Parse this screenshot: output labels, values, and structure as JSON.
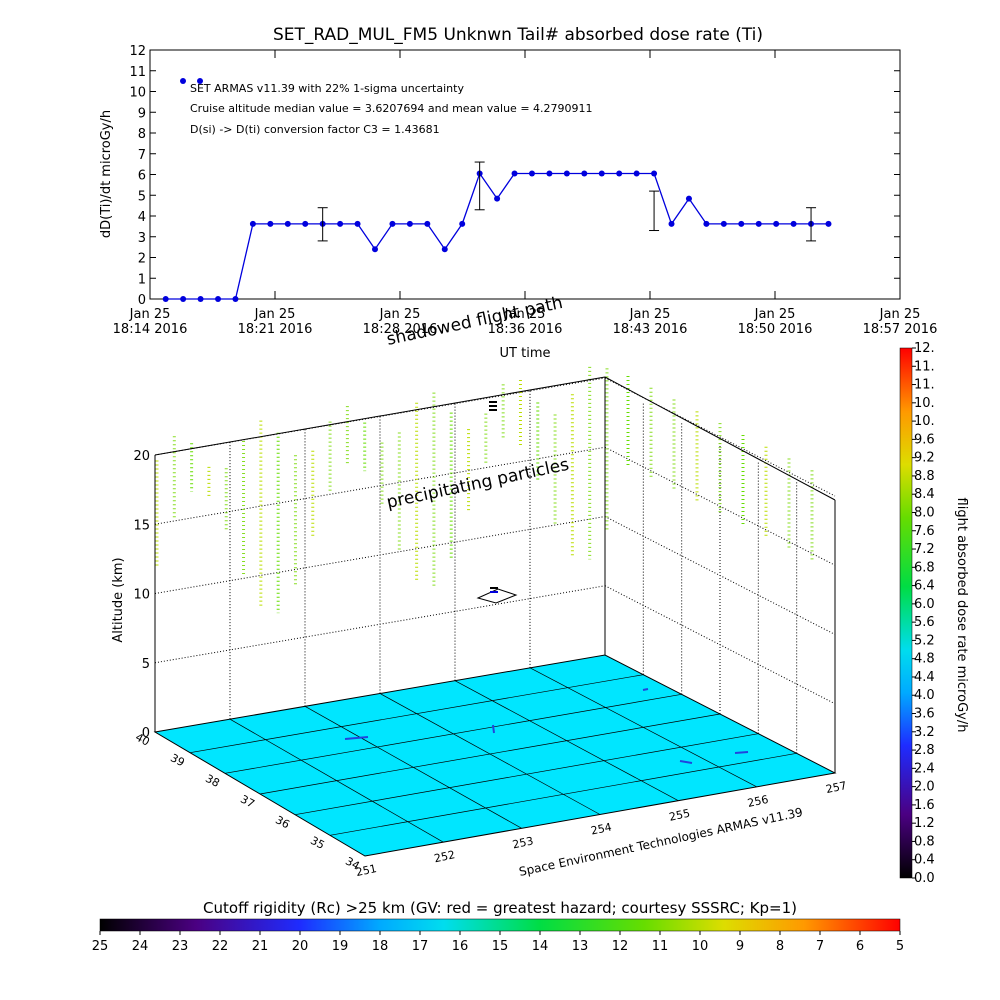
{
  "figure": {
    "title": "SET_RAD_MUL_FM5 Unknwn Tail#  absorbed dose rate (Ti)",
    "footer": "Space Environment Technologies ARMAS v11.39"
  },
  "chart_data": [
    {
      "type": "line",
      "title": "SET_RAD_MUL_FM5 Unknwn Tail#  absorbed dose rate (Ti)",
      "xlabel": "UT time",
      "ylabel": "dD(Ti)/dt microGy/h",
      "ylim": [
        0,
        12
      ],
      "yticks": [
        "0",
        "1",
        "2",
        "3",
        "4",
        "5",
        "6",
        "7",
        "8",
        "9",
        "10",
        "11",
        "12"
      ],
      "xtick_labels_top": [
        "Jan 25",
        "Jan 25",
        "Jan 25",
        "Jan 25",
        "Jan 25",
        "Jan 25",
        "Jan 25"
      ],
      "xtick_labels_bottom": [
        "18:14 2016",
        "18:21 2016",
        "18:28 2016",
        "18:36 2016",
        "18:43 2016",
        "18:50 2016",
        "18:57 2016"
      ],
      "annotations": [
        "SET ARMAS v11.39 with 22% 1-sigma uncertainty",
        "Cruise altitude median value = 3.6207694 and mean value = 4.2790911",
        "D(si) -> D(ti) conversion factor C3 = 1.43681"
      ],
      "grid": false,
      "x_minutes": [
        0.9,
        1.9,
        2.9,
        3.9,
        4.9,
        5.9,
        6.9,
        7.9,
        8.9,
        9.9,
        10.9,
        11.9,
        12.9,
        13.9,
        14.9,
        15.9,
        16.9,
        17.9,
        18.9,
        19.9,
        20.9,
        21.9,
        22.9,
        23.9,
        24.9,
        25.9,
        26.9,
        27.9,
        28.9,
        29.9,
        30.9,
        31.9,
        32.9,
        33.9,
        34.9,
        35.9,
        36.9,
        37.9,
        38.9
      ],
      "values": [
        0,
        0,
        0,
        0,
        0,
        3.62,
        3.62,
        3.62,
        3.62,
        3.62,
        3.62,
        3.62,
        2.4,
        3.62,
        3.62,
        3.62,
        2.4,
        3.62,
        6.05,
        4.84,
        6.05,
        6.05,
        6.05,
        6.05,
        6.05,
        6.05,
        6.05,
        6.05,
        6.05,
        3.62,
        4.84,
        3.62,
        3.62,
        3.62,
        3.62,
        3.62,
        3.62,
        3.62,
        3.62
      ],
      "error_bars": [
        {
          "x_minute": 9.9,
          "value": 3.62,
          "low": 2.8,
          "high": 4.4
        },
        {
          "x_minute": 18.9,
          "value": 5.45,
          "low": 4.3,
          "high": 6.6
        },
        {
          "x_minute": 28.9,
          "value": 4.24,
          "low": 3.3,
          "high": 5.2
        },
        {
          "x_minute": 37.9,
          "value": 3.62,
          "low": 2.8,
          "high": 4.4
        }
      ],
      "series_color": "#0000dd"
    },
    {
      "type": "3d-scatter",
      "ylabel": "Altitude (km)",
      "zticks": [
        "0",
        "5",
        "10",
        "15",
        "20"
      ],
      "lat_ticks": [
        "34",
        "35",
        "36",
        "37",
        "38",
        "39",
        "40"
      ],
      "lon_ticks": [
        "251",
        "252",
        "253",
        "254",
        "255",
        "256",
        "257"
      ],
      "annotations": [
        "precipitating particles",
        "shadowed flight path"
      ],
      "colorbar": {
        "label": "flight absorbed dose rate microGy/h",
        "ticks": [
          "0.0",
          "0.4",
          "0.8",
          "1.2",
          "1.6",
          "2.0",
          "2.4",
          "2.8",
          "3.2",
          "3.6",
          "4.0",
          "4.4",
          "4.8",
          "5.2",
          "5.6",
          "6.0",
          "6.4",
          "6.8",
          "7.2",
          "7.6",
          "8.0",
          "8.4",
          "8.8",
          "9.2",
          "9.6",
          "10.",
          "10.",
          "11.",
          "11.",
          "12."
        ]
      },
      "floor_color": "#00e6ff"
    },
    {
      "type": "colorbar",
      "title": "Cutoff rigidity (Rc) >25 km (GV: red = greatest hazard; courtesy SSSRC; Kp=1)",
      "ticks": [
        "25",
        "24",
        "23",
        "22",
        "21",
        "20",
        "19",
        "18",
        "17",
        "16",
        "15",
        "14",
        "13",
        "12",
        "11",
        "10",
        "9",
        "8",
        "7",
        "6",
        "5"
      ]
    }
  ]
}
